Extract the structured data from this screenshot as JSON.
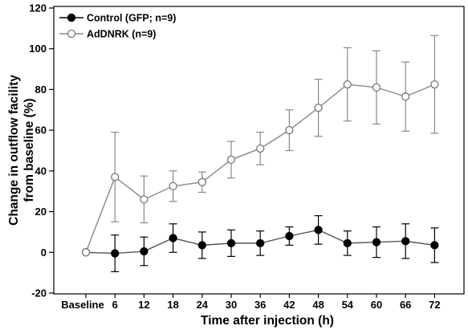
{
  "chart_data": {
    "type": "line",
    "xlabel": "Time after injection (h)",
    "ylabel_lines": [
      "Change in outflow facility",
      "from baseline (%)"
    ],
    "categories": [
      "Baseline",
      "6",
      "12",
      "18",
      "24",
      "30",
      "36",
      "42",
      "48",
      "54",
      "60",
      "66",
      "72"
    ],
    "ylim": [
      -20,
      120
    ],
    "yticks": [
      -20,
      0,
      20,
      40,
      60,
      80,
      100,
      120
    ],
    "grid": false,
    "legend_position": "top-left",
    "series": [
      {
        "name": "Control (GFP; n=9)",
        "marker": "filled-circle",
        "color": "#000000",
        "values": [
          0,
          -0.5,
          0.5,
          7,
          3.5,
          4.5,
          4.5,
          8,
          11,
          4.5,
          5,
          5.5,
          3.5
        ],
        "err": [
          0,
          9,
          7,
          7,
          6.5,
          6.5,
          6,
          4.5,
          7,
          6,
          7.5,
          8.5,
          8.5
        ]
      },
      {
        "name": "AdDNRK (n=9)",
        "marker": "open-circle",
        "color": "#888888",
        "values": [
          0,
          37,
          26,
          32.5,
          34.5,
          45.5,
          51,
          60,
          71,
          82.5,
          81,
          76.5,
          82.5
        ],
        "err": [
          0,
          22,
          11.5,
          7.5,
          5,
          9,
          8,
          10,
          14,
          18,
          18,
          17,
          24
        ]
      }
    ]
  }
}
